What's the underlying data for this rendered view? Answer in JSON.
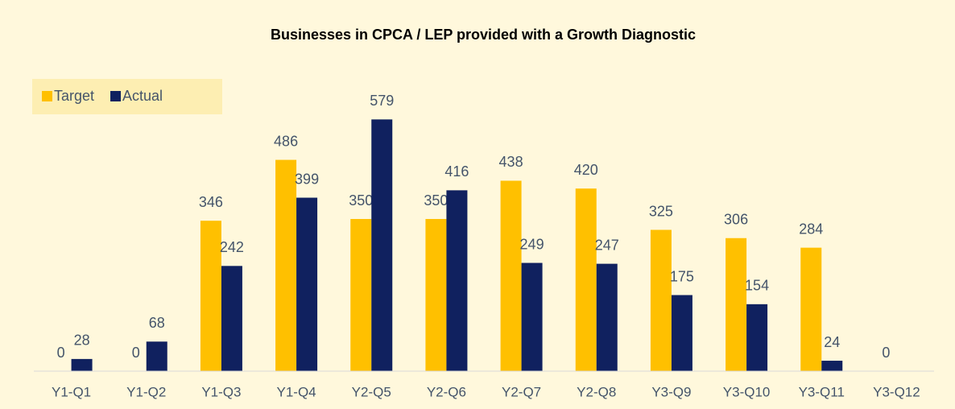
{
  "chart_data": {
    "type": "bar",
    "title": "Businesses in CPCA / LEP provided with a Growth Diagnostic",
    "categories": [
      "Y1-Q1",
      "Y1-Q2",
      "Y1-Q3",
      "Y1-Q4",
      "Y2-Q5",
      "Y2-Q6",
      "Y2-Q7",
      "Y2-Q8",
      "Y3-Q9",
      "Y3-Q10",
      "Y3-Q11",
      "Y3-Q12"
    ],
    "series": [
      {
        "name": "Target",
        "color": "#ffc000",
        "values": [
          0,
          0,
          346,
          486,
          350,
          350,
          438,
          420,
          325,
          306,
          284,
          0
        ]
      },
      {
        "name": "Actual",
        "color": "#10215f",
        "values": [
          28,
          68,
          242,
          399,
          579,
          416,
          249,
          247,
          175,
          154,
          24,
          null
        ]
      }
    ],
    "ylim": [
      0,
      600
    ],
    "legend": "top-left"
  }
}
